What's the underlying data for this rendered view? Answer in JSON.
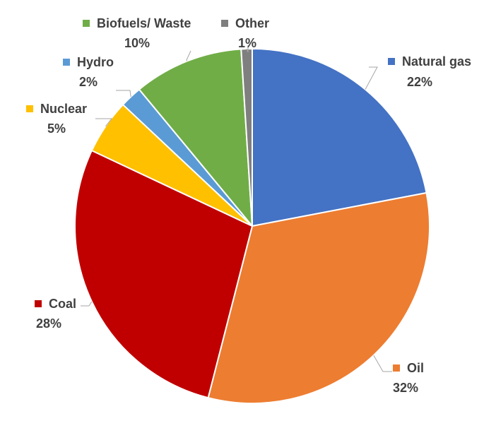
{
  "chart_data": {
    "type": "pie",
    "title": "",
    "start_angle_deg": 0,
    "direction": "clockwise",
    "slices": [
      {
        "label": "Natural gas",
        "value": 22,
        "value_label": "22%",
        "color": "#4472C4"
      },
      {
        "label": "Oil",
        "value": 32,
        "value_label": "32%",
        "color": "#ED7D31"
      },
      {
        "label": "Coal",
        "value": 28,
        "value_label": "28%",
        "color": "#C00000"
      },
      {
        "label": "Nuclear",
        "value": 5,
        "value_label": "5%",
        "color": "#FFC000"
      },
      {
        "label": "Hydro",
        "value": 2,
        "value_label": "2%",
        "color": "#5B9BD5"
      },
      {
        "label": "Biofuels/ Waste",
        "value": 10,
        "value_label": "10%",
        "color": "#70AD47"
      },
      {
        "label": "Other",
        "value": 1,
        "value_label": "1%",
        "color": "#7F7F7F"
      }
    ],
    "legend": "none",
    "data_labels": "outside-with-leader-lines"
  }
}
